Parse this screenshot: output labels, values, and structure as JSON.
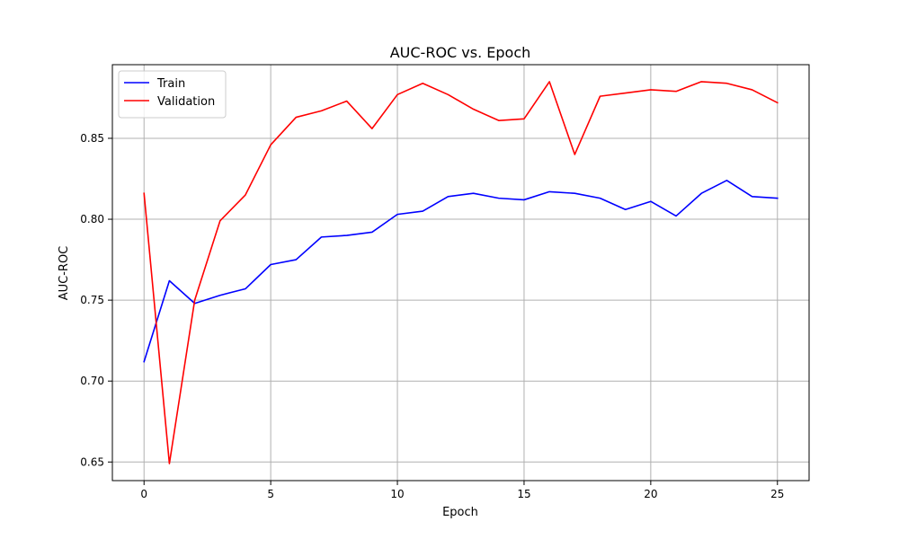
{
  "chart_data": {
    "type": "line",
    "title": "AUC-ROC vs. Epoch",
    "xlabel": "Epoch",
    "ylabel": "AUC-ROC",
    "xlim": [
      -1.25,
      26.25
    ],
    "ylim": [
      0.6385,
      0.8955
    ],
    "xticks": [
      0,
      5,
      10,
      15,
      20,
      25
    ],
    "xtick_labels": [
      "0",
      "5",
      "10",
      "15",
      "20",
      "25"
    ],
    "yticks": [
      0.65,
      0.7,
      0.75,
      0.8,
      0.85
    ],
    "ytick_labels": [
      "0.65",
      "0.70",
      "0.75",
      "0.80",
      "0.85"
    ],
    "grid": true,
    "legend_position": "top-left",
    "x": [
      0,
      1,
      2,
      3,
      4,
      5,
      6,
      7,
      8,
      9,
      10,
      11,
      12,
      13,
      14,
      15,
      16,
      17,
      18,
      19,
      20,
      21,
      22,
      23,
      24,
      25
    ],
    "series": [
      {
        "name": "Train",
        "color": "#0000ff",
        "values": [
          0.712,
          0.762,
          0.748,
          0.753,
          0.757,
          0.772,
          0.775,
          0.789,
          0.79,
          0.792,
          0.803,
          0.805,
          0.814,
          0.816,
          0.813,
          0.812,
          0.817,
          0.816,
          0.813,
          0.806,
          0.811,
          0.802,
          0.816,
          0.824,
          0.814,
          0.813
        ]
      },
      {
        "name": "Validation",
        "color": "#ff0000",
        "values": [
          0.816,
          0.649,
          0.75,
          0.799,
          0.815,
          0.846,
          0.863,
          0.867,
          0.873,
          0.856,
          0.877,
          0.884,
          0.877,
          0.868,
          0.861,
          0.862,
          0.885,
          0.84,
          0.876,
          0.878,
          0.88,
          0.879,
          0.885,
          0.884,
          0.88,
          0.872
        ]
      }
    ]
  }
}
